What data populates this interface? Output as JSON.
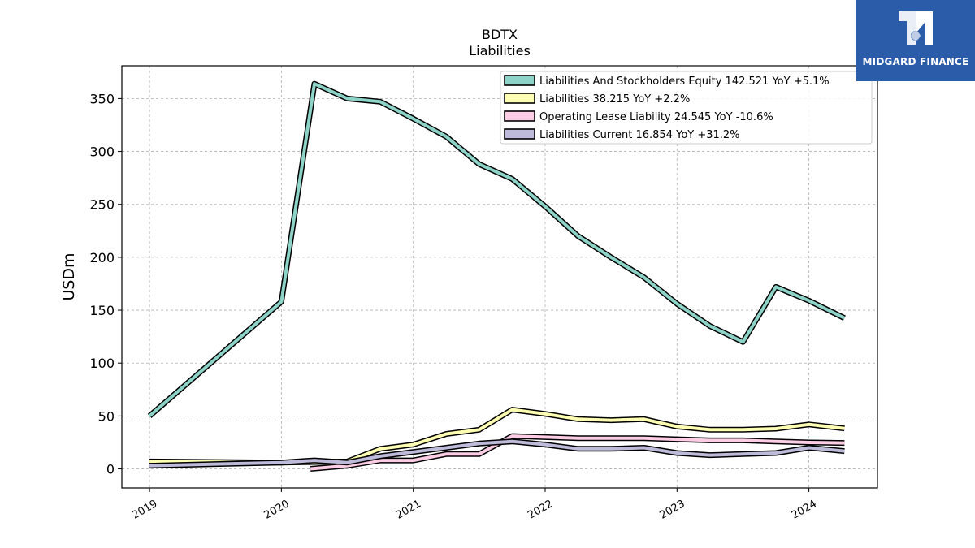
{
  "brand": {
    "name": "MIDGARD FINANCE"
  },
  "chart_data": {
    "type": "line",
    "title": "BDTX",
    "subtitle": "Liabilities",
    "ylabel": "USDm",
    "xlabel": "",
    "ylim": [
      -18,
      381
    ],
    "xlim": [
      2018.79,
      2024.52
    ],
    "yticks": [
      0,
      50,
      100,
      150,
      200,
      250,
      300,
      350
    ],
    "xticks": [
      2019,
      2020,
      2021,
      2022,
      2023,
      2024
    ],
    "grid": true,
    "legend_position": "top-right",
    "series": [
      {
        "name": "Liabilities And Stockholders Equity",
        "legend": "Liabilities And Stockholders Equity  142.521 YoY +5.1%",
        "color": "#8dd3c7",
        "x": [
          2019.0,
          2020.0,
          2020.25,
          2020.5,
          2020.75,
          2021.0,
          2021.25,
          2021.5,
          2021.75,
          2022.0,
          2022.25,
          2022.5,
          2022.75,
          2023.0,
          2023.25,
          2023.5,
          2023.75,
          2024.0,
          2024.27
        ],
        "values": [
          50,
          158,
          364,
          350,
          347,
          331,
          314,
          288,
          274,
          248,
          220,
          200,
          181,
          156,
          135,
          120,
          172,
          159,
          142.521
        ]
      },
      {
        "name": "Liabilities",
        "legend": "Liabilities  38.215 YoY +2.2%",
        "color": "#ffffb3",
        "x": [
          2019.0,
          2020.0,
          2020.5,
          2020.75,
          2021.0,
          2021.25,
          2021.5,
          2021.75,
          2022.0,
          2022.25,
          2022.5,
          2022.75,
          2023.0,
          2023.25,
          2023.5,
          2023.75,
          2024.0,
          2024.27
        ],
        "values": [
          7,
          6,
          7,
          19,
          23,
          33,
          37,
          56,
          52,
          47,
          46,
          47,
          40,
          37,
          37,
          38,
          42,
          38.215
        ]
      },
      {
        "name": "Operating Lease Liability",
        "legend": "Operating Lease Liability  24.545 YoY -10.6%",
        "color": "#fccde5",
        "x": [
          2020.22,
          2020.5,
          2020.75,
          2021.0,
          2021.25,
          2021.5,
          2021.75,
          2022.0,
          2022.25,
          2022.5,
          2022.75,
          2023.0,
          2023.25,
          2023.5,
          2023.75,
          2024.0,
          2024.27
        ],
        "values": [
          0,
          3,
          8,
          8,
          14,
          14,
          31,
          30,
          29,
          29,
          29,
          28,
          27,
          27,
          26,
          25,
          24.545
        ]
      },
      {
        "name": "Liabilities Current",
        "legend": "Liabilities Current  16.854 YoY +31.2%",
        "color": "#bebada",
        "x": [
          2019.0,
          2020.0,
          2020.25,
          2020.5,
          2020.75,
          2021.0,
          2021.25,
          2021.5,
          2021.75,
          2022.0,
          2022.25,
          2022.5,
          2022.75,
          2023.0,
          2023.25,
          2023.5,
          2023.75,
          2024.0,
          2024.27
        ],
        "values": [
          3,
          6,
          8,
          6,
          12,
          16,
          20,
          24,
          26,
          23,
          19,
          19,
          20,
          15,
          13,
          14,
          15,
          20,
          16.854
        ]
      }
    ]
  }
}
